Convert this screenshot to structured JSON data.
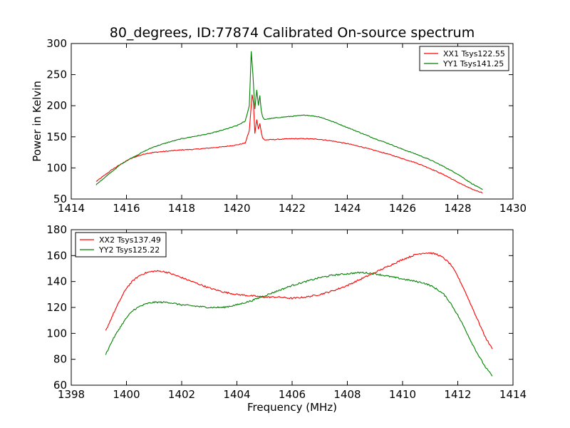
{
  "figure": {
    "title": "80_degrees, ID:77874 Calibrated On-source spectrum"
  },
  "chart_data": [
    {
      "type": "line",
      "title": "80_degrees, ID:77874 Calibrated On-source spectrum",
      "xlabel": "",
      "ylabel": "Power in Kelvin",
      "xlim": [
        1414,
        1430
      ],
      "ylim": [
        50,
        300
      ],
      "xticks": [
        1414,
        1416,
        1418,
        1420,
        1422,
        1424,
        1426,
        1428,
        1430
      ],
      "yticks": [
        50,
        100,
        150,
        200,
        250,
        300
      ],
      "grid": false,
      "legend": "top-right",
      "series": [
        {
          "name": "XX1 Tsys122.55",
          "color": "#ff0000",
          "x": [
            1414.9,
            1415.2,
            1415.5,
            1415.8,
            1416.1,
            1416.4,
            1416.7,
            1417.0,
            1417.5,
            1418.0,
            1418.5,
            1419.0,
            1419.5,
            1420.0,
            1420.3,
            1420.45,
            1420.55,
            1420.6,
            1420.65,
            1420.72,
            1420.78,
            1420.83,
            1420.88,
            1420.93,
            1421.0,
            1421.5,
            1422.0,
            1422.5,
            1423.0,
            1423.5,
            1424.0,
            1424.5,
            1425.0,
            1425.5,
            1426.0,
            1426.5,
            1427.0,
            1427.5,
            1428.0,
            1428.5,
            1428.9
          ],
          "y": [
            78,
            88,
            98,
            106,
            114,
            119,
            123,
            125,
            127,
            129,
            130,
            132,
            134,
            137,
            140,
            160,
            218,
            205,
            155,
            178,
            162,
            172,
            158,
            148,
            145,
            146,
            147,
            147,
            146,
            143,
            139,
            134,
            128,
            122,
            115,
            108,
            99,
            89,
            77,
            66,
            60
          ]
        },
        {
          "name": "YY1 Tsys141.25",
          "color": "#008000",
          "x": [
            1414.9,
            1415.2,
            1415.5,
            1415.8,
            1416.1,
            1416.4,
            1416.7,
            1417.0,
            1417.5,
            1418.0,
            1418.5,
            1419.0,
            1419.5,
            1420.0,
            1420.3,
            1420.45,
            1420.52,
            1420.58,
            1420.65,
            1420.72,
            1420.78,
            1420.83,
            1420.88,
            1420.93,
            1421.0,
            1421.5,
            1422.0,
            1422.5,
            1423.0,
            1423.5,
            1424.0,
            1424.5,
            1425.0,
            1425.5,
            1426.0,
            1426.5,
            1427.0,
            1427.5,
            1428.0,
            1428.5,
            1428.9
          ],
          "y": [
            73,
            84,
            95,
            106,
            114,
            121,
            128,
            134,
            141,
            147,
            151,
            155,
            161,
            168,
            175,
            200,
            288,
            250,
            195,
            225,
            200,
            217,
            192,
            182,
            178,
            181,
            183,
            185,
            182,
            174,
            165,
            156,
            147,
            139,
            130,
            122,
            113,
            102,
            90,
            75,
            65
          ]
        }
      ]
    },
    {
      "type": "line",
      "title": "",
      "xlabel": "Frequency (MHz)",
      "ylabel": "",
      "xlim": [
        1398,
        1414
      ],
      "ylim": [
        60,
        180
      ],
      "xticks": [
        1398,
        1400,
        1402,
        1404,
        1406,
        1408,
        1410,
        1412,
        1414
      ],
      "yticks": [
        60,
        80,
        100,
        120,
        140,
        160,
        180
      ],
      "grid": false,
      "legend": "top-left",
      "series": [
        {
          "name": "XX2 Tsys137.49",
          "color": "#ff0000",
          "x": [
            1399.25,
            1399.5,
            1399.75,
            1400.0,
            1400.25,
            1400.5,
            1400.75,
            1401.0,
            1401.25,
            1401.5,
            1401.75,
            1402.0,
            1402.5,
            1403.0,
            1403.5,
            1404.0,
            1404.5,
            1405.0,
            1405.5,
            1406.0,
            1406.5,
            1407.0,
            1407.5,
            1408.0,
            1408.5,
            1409.0,
            1409.5,
            1410.0,
            1410.5,
            1410.75,
            1411.0,
            1411.25,
            1411.5,
            1411.75,
            1412.0,
            1412.25,
            1412.5,
            1412.75,
            1413.0,
            1413.25
          ],
          "y": [
            102,
            114,
            125,
            135,
            141,
            145,
            147,
            148,
            148,
            147,
            145,
            143,
            139,
            135,
            132,
            130,
            129,
            128,
            128,
            127,
            128,
            130,
            133,
            137,
            142,
            147,
            152,
            157,
            161,
            162,
            162,
            161,
            158,
            153,
            144,
            133,
            121,
            109,
            97,
            88
          ]
        },
        {
          "name": "YY2 Tsys125.22",
          "color": "#008000",
          "x": [
            1399.25,
            1399.5,
            1399.75,
            1400.0,
            1400.25,
            1400.5,
            1400.75,
            1401.0,
            1401.25,
            1401.5,
            1401.75,
            1402.0,
            1402.5,
            1403.0,
            1403.5,
            1404.0,
            1404.5,
            1405.0,
            1405.5,
            1406.0,
            1406.5,
            1407.0,
            1407.5,
            1408.0,
            1408.5,
            1409.0,
            1409.5,
            1410.0,
            1410.5,
            1410.75,
            1411.0,
            1411.25,
            1411.5,
            1411.75,
            1412.0,
            1412.25,
            1412.5,
            1412.75,
            1413.0,
            1413.25
          ],
          "y": [
            84,
            95,
            104,
            112,
            118,
            121,
            123,
            124,
            124,
            124,
            123,
            122,
            121,
            120,
            120,
            122,
            125,
            129,
            133,
            137,
            140,
            143,
            145,
            146,
            147,
            146,
            144,
            142,
            140,
            139,
            137,
            134,
            130,
            123,
            114,
            104,
            93,
            83,
            74,
            67
          ]
        }
      ]
    }
  ]
}
